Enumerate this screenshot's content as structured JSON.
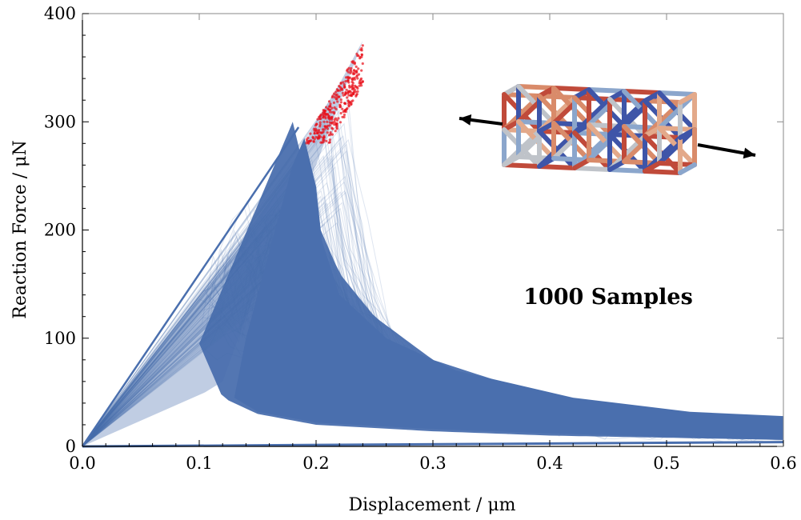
{
  "chart_data": {
    "type": "line",
    "title": "",
    "xlabel": "Displacement / μm",
    "ylabel": "Reaction Force / μN",
    "xlim": [
      0,
      0.6
    ],
    "ylim": [
      0,
      400
    ],
    "x_ticks": [
      {
        "value": 0.0,
        "label": "0.0"
      },
      {
        "value": 0.1,
        "label": "0.1"
      },
      {
        "value": 0.2,
        "label": "0.2"
      },
      {
        "value": 0.3,
        "label": "0.3"
      },
      {
        "value": 0.4,
        "label": "0.4"
      },
      {
        "value": 0.5,
        "label": "0.5"
      },
      {
        "value": 0.6,
        "label": "0.6"
      }
    ],
    "y_ticks": [
      {
        "value": 0,
        "label": "0"
      },
      {
        "value": 100,
        "label": "100"
      },
      {
        "value": 200,
        "label": "200"
      },
      {
        "value": 300,
        "label": "300"
      },
      {
        "value": 400,
        "label": "400"
      }
    ],
    "grid": false,
    "legend": "none",
    "annotation": "1000 Samples",
    "colors": {
      "curves": "#4a6fae",
      "peaks": "#e8101a",
      "arrows": "#000000"
    },
    "series": [
      {
        "style": "envelope-upper-loading",
        "x": [
          0,
          0.05,
          0.1,
          0.15,
          0.18,
          0.2,
          0.22,
          0.24
        ],
        "y": [
          0,
          70,
          140,
          210,
          260,
          300,
          335,
          375
        ]
      },
      {
        "style": "envelope-lower-softening",
        "x": [
          0.1,
          0.12,
          0.15,
          0.2,
          0.3,
          0.4,
          0.5,
          0.6
        ],
        "y": [
          95,
          45,
          30,
          20,
          14,
          10,
          8,
          6
        ]
      },
      {
        "style": "envelope-upper-softening",
        "x": [
          0.18,
          0.2,
          0.22,
          0.25,
          0.3,
          0.4,
          0.5,
          0.6
        ],
        "y": [
          300,
          210,
          160,
          120,
          80,
          45,
          30,
          25
        ]
      }
    ],
    "peak_points": {
      "x_range": [
        0.18,
        0.24
      ],
      "y_range": [
        280,
        375
      ]
    }
  }
}
